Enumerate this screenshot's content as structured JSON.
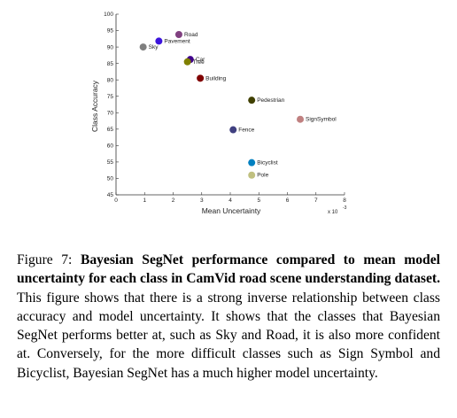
{
  "chart_data": {
    "type": "scatter",
    "xlabel": "Mean Uncertainty",
    "ylabel": "Class Accuracy",
    "x_multiplier_label": "x 10",
    "x_multiplier_exp": "-3",
    "xlim": [
      0,
      8
    ],
    "ylim": [
      45,
      100
    ],
    "x_ticks": [
      "0",
      "1",
      "2",
      "3",
      "4",
      "5",
      "6",
      "7",
      "8"
    ],
    "y_ticks": [
      "45",
      "50",
      "55",
      "60",
      "65",
      "70",
      "75",
      "80",
      "85",
      "90",
      "95",
      "100"
    ],
    "grid": false,
    "points": [
      {
        "label": "Sky",
        "x": 0.95,
        "y": 90.0,
        "color": "#7f7f7f"
      },
      {
        "label": "Pavement",
        "x": 1.5,
        "y": 91.8,
        "color": "#3c14dc"
      },
      {
        "label": "Road",
        "x": 2.2,
        "y": 93.8,
        "color": "#804080"
      },
      {
        "label": "Car",
        "x": 2.6,
        "y": 86.2,
        "color": "#40008c"
      },
      {
        "label": "Tree",
        "x": 2.5,
        "y": 85.5,
        "color": "#808000"
      },
      {
        "label": "Building",
        "x": 2.95,
        "y": 80.5,
        "color": "#800000"
      },
      {
        "label": "Pedestrian",
        "x": 4.75,
        "y": 73.8,
        "color": "#404000"
      },
      {
        "label": "SignSymbol",
        "x": 6.45,
        "y": 68.0,
        "color": "#c08080"
      },
      {
        "label": "Fence",
        "x": 4.1,
        "y": 64.8,
        "color": "#404080"
      },
      {
        "label": "Bicyclist",
        "x": 4.75,
        "y": 54.8,
        "color": "#0080c0"
      },
      {
        "label": "Pole",
        "x": 4.75,
        "y": 51.0,
        "color": "#c0c080"
      }
    ]
  },
  "caption": {
    "label": "Figure 7:",
    "bold": "Bayesian SegNet performance compared to mean model uncertainty for each class in CamVid road scene understanding dataset.",
    "text": "This figure shows that there is a strong inverse relationship between class accuracy and model uncertainty. It shows that the classes that Bayesian SegNet performs better at, such as Sky and Road, it is also more confident at. Conversely, for the more difficult classes such as Sign Symbol and Bicyclist, Bayesian SegNet has a much higher model uncertainty."
  }
}
